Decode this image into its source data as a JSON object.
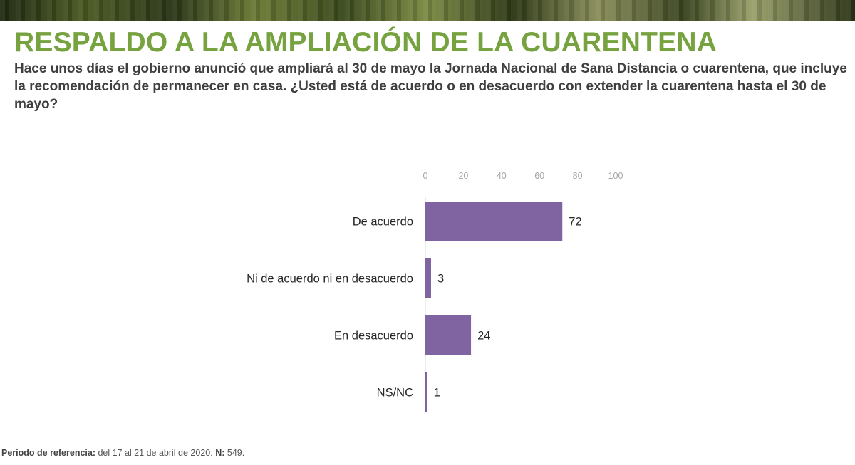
{
  "header": {
    "title": "RESPALDO A LA AMPLIACIÓN DE LA CUARENTENA",
    "question": "Hace unos días el gobierno anunció que ampliará al 30 de mayo la Jornada Nacional de Sana Distancia o cuarentena, que incluye la recomendación de permanecer en casa. ¿Usted está de acuerdo o en desacuerdo con extender la cuarentena hasta el 30 de mayo?"
  },
  "chart_data": {
    "type": "bar",
    "orientation": "horizontal",
    "categories": [
      "De acuerdo",
      "Ni de acuerdo ni en desacuerdo",
      "En desacuerdo",
      "NS/NC"
    ],
    "values": [
      72,
      3,
      24,
      1
    ],
    "xlim": [
      0,
      100
    ],
    "ticks": [
      0,
      20,
      40,
      60,
      80,
      100
    ],
    "axis_position": "top",
    "grid": false,
    "bar_color": "#8064a2",
    "tick_color": "#a6a6a6",
    "label_color": "#262626"
  },
  "footer": {
    "period_label": "Periodo de referencia:",
    "period_value": " del 17 al 21 de abril de 2020. ",
    "n_label": "N:",
    "n_value": " 549."
  }
}
